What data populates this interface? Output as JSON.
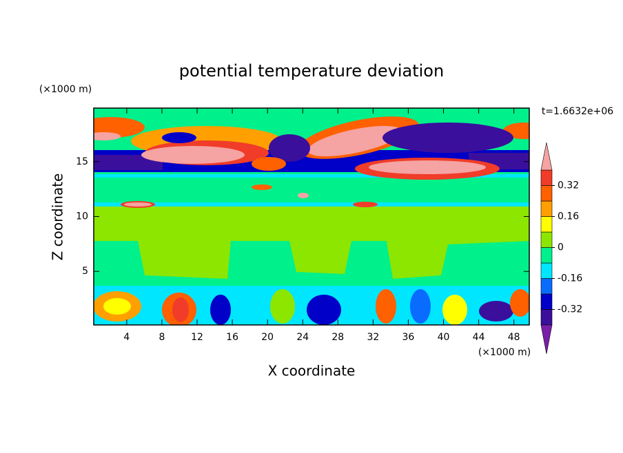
{
  "chart_data": {
    "type": "contour",
    "title": "potential temperature deviation",
    "x_label": "X coordinate",
    "y_label": "Z coordinate",
    "x_unit": "(×1000 m)",
    "y_unit": "(×1000 m)",
    "annotation": "t=1.6632e+06",
    "xlim": [
      0.25,
      49.75
    ],
    "xticks": [
      4,
      8,
      12,
      16,
      20,
      24,
      28,
      32,
      36,
      40,
      44,
      48
    ],
    "ylim": [
      0.125,
      19.875
    ],
    "yticks": [
      5,
      10,
      15
    ],
    "levels": [
      -0.4,
      -0.32,
      -0.24,
      -0.16,
      -0.08,
      0,
      0.08,
      0.16,
      0.24,
      0.32,
      0.4
    ],
    "colors": [
      "#7a1fa8",
      "#3a0f9c",
      "#0000c8",
      "#0a6cff",
      "#00e6ff",
      "#00f08c",
      "#8ce600",
      "#ffff00",
      "#ffa000",
      "#ff6000",
      "#f03c28",
      "#f5a3a3"
    ],
    "colorbar_ticks": [
      -0.32,
      -0.16,
      0,
      0.16,
      0.32
    ]
  }
}
